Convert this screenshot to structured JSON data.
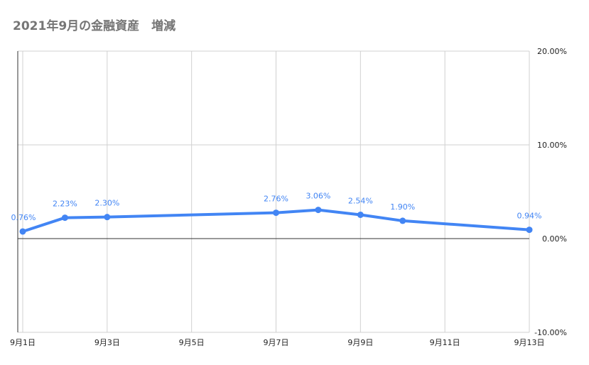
{
  "chart_data": {
    "type": "line",
    "title": "2021年9月の金融資産　増減",
    "x_days": [
      1,
      2,
      3,
      7,
      8,
      9,
      10,
      13
    ],
    "values": [
      0.76,
      2.23,
      2.3,
      2.76,
      3.06,
      2.54,
      1.9,
      0.94
    ],
    "data_labels": [
      "0.76%",
      "2.23%",
      "2.30%",
      "2.76%",
      "3.06%",
      "2.54%",
      "1.90%",
      "0.94%"
    ],
    "x_ticks": [
      1,
      3,
      5,
      7,
      9,
      11,
      13
    ],
    "x_tick_labels": [
      "9月1日",
      "9月3日",
      "9月5日",
      "9月7日",
      "9月9日",
      "9月11日",
      "9月13日"
    ],
    "xlim": [
      1,
      13
    ],
    "y_ticks": [
      20,
      10,
      0,
      -10
    ],
    "y_tick_labels": [
      "20.00%",
      "10.00%",
      "0.00%",
      "-10.00%"
    ],
    "ylim": [
      -10,
      20
    ],
    "y_axis_side": "right",
    "grid": true,
    "line_color": "#4285f4"
  }
}
